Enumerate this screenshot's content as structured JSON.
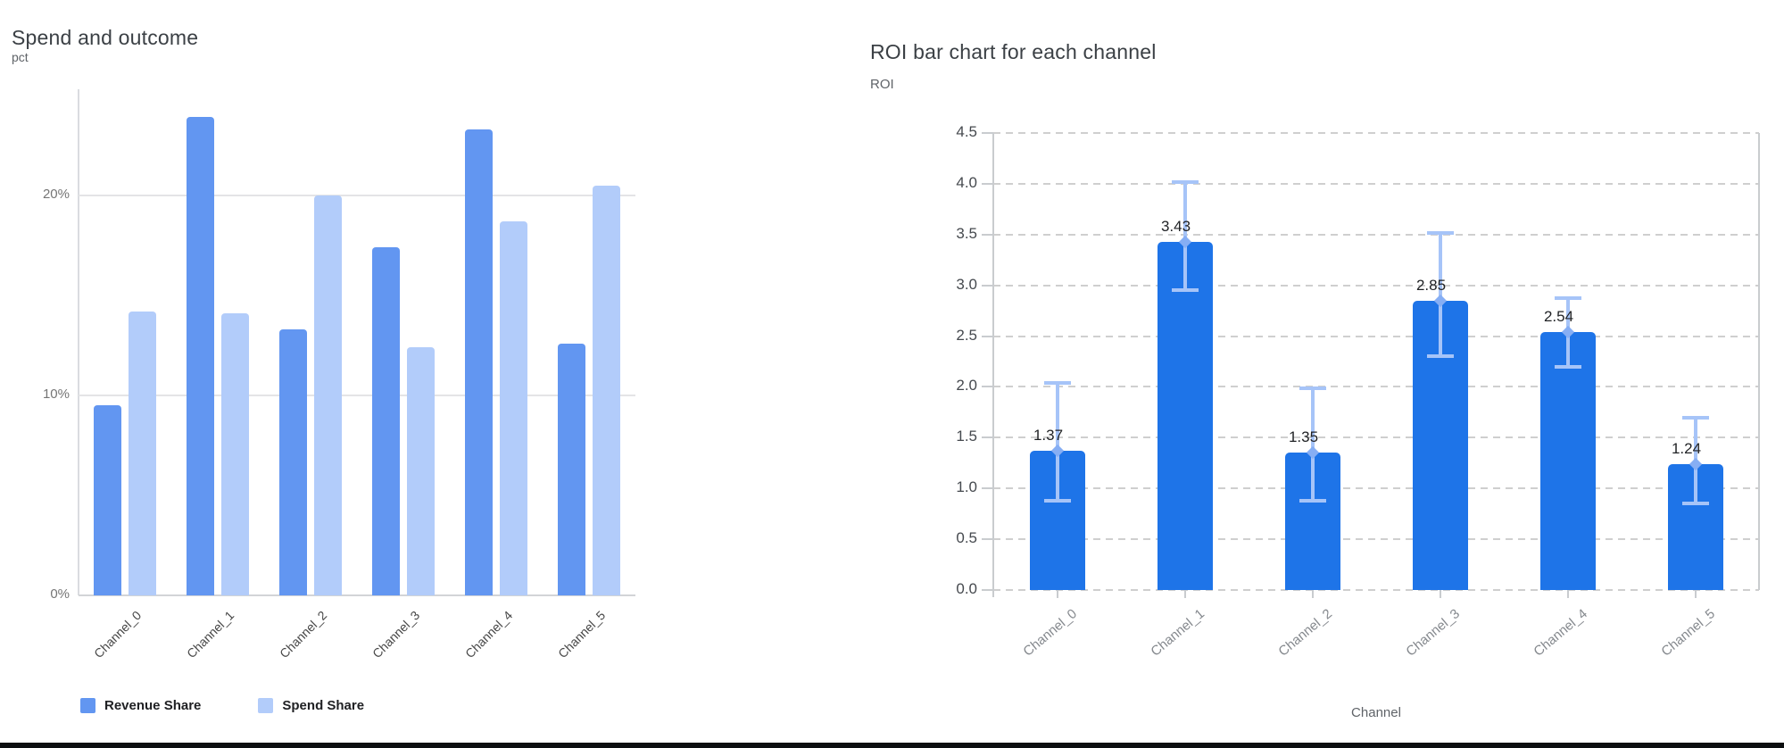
{
  "chart_data": [
    {
      "type": "bar",
      "title": "Spend and outcome",
      "ylabel": "pct",
      "xlabel": "",
      "categories": [
        "Channel_0",
        "Channel_1",
        "Channel_2",
        "Channel_3",
        "Channel_4",
        "Channel_5"
      ],
      "series": [
        {
          "name": "Revenue Share",
          "color": "#6296F1",
          "values": [
            9.5,
            23.9,
            13.3,
            17.4,
            23.3,
            12.6
          ]
        },
        {
          "name": "Spend Share",
          "color": "#B2CCFA",
          "values": [
            14.2,
            14.1,
            20.0,
            12.4,
            18.7,
            20.5
          ]
        }
      ],
      "value_unit": "%",
      "y_ticks": [
        "0%",
        "10%",
        "20%"
      ],
      "y_tick_values": [
        0,
        10,
        20
      ],
      "ylim": [
        0,
        25.3
      ],
      "grid": "horizontal-solid",
      "legend_position": "bottom"
    },
    {
      "type": "bar",
      "title": "ROI bar chart for each channel",
      "ylabel": "ROI",
      "xlabel": "Channel",
      "categories": [
        "Channel_0",
        "Channel_1",
        "Channel_2",
        "Channel_3",
        "Channel_4",
        "Channel_5"
      ],
      "values": [
        1.37,
        3.43,
        1.35,
        2.85,
        2.54,
        1.24
      ],
      "error_low": [
        0.88,
        2.95,
        0.88,
        2.3,
        2.2,
        0.85
      ],
      "error_high": [
        2.04,
        4.02,
        1.99,
        3.52,
        2.87,
        1.7
      ],
      "bar_color": "#1E74E8",
      "error_bar_color": "#A6C4F8",
      "error_marker_color": "#86AEF4",
      "ylim": [
        0,
        4.5
      ],
      "y_tick_step": 0.5,
      "grid": "horizontal-dashed",
      "legend_position": "none"
    }
  ]
}
